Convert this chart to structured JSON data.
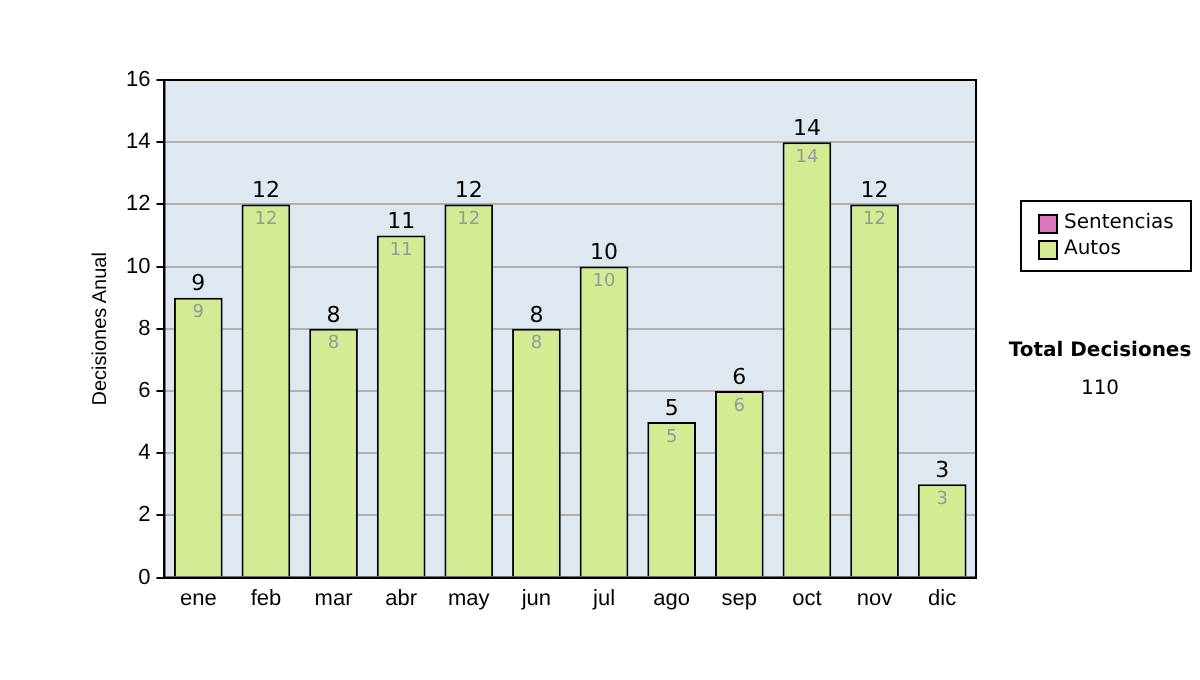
{
  "chart_data": {
    "type": "bar",
    "stacked": true,
    "ylabel": "Decisiones Anual",
    "categories": [
      "ene",
      "feb",
      "mar",
      "abr",
      "may",
      "jun",
      "jul",
      "ago",
      "sep",
      "oct",
      "nov",
      "dic"
    ],
    "series": [
      {
        "name": "Sentencias",
        "color": "#dd77bb",
        "values": [
          0,
          0,
          0,
          0,
          0,
          0,
          0,
          0,
          0,
          0,
          0,
          0
        ]
      },
      {
        "name": "Autos",
        "color": "#d4eb94",
        "values": [
          9,
          12,
          8,
          11,
          12,
          8,
          10,
          5,
          6,
          14,
          12,
          3
        ],
        "value_labels": [
          "9",
          "12",
          "8",
          "11",
          "12",
          "8",
          "10",
          "5",
          "6",
          "14",
          "12",
          "3"
        ]
      }
    ],
    "totals": [
      "9",
      "12",
      "8",
      "11",
      "12",
      "8",
      "10",
      "5",
      "6",
      "14",
      "12",
      "3"
    ],
    "ylim": [
      0,
      16
    ],
    "yticks": [
      0,
      2,
      4,
      6,
      8,
      10,
      12,
      14,
      16
    ],
    "grid": "y",
    "legend": "right",
    "annotations": [
      "Total Decisiones",
      "110"
    ]
  }
}
